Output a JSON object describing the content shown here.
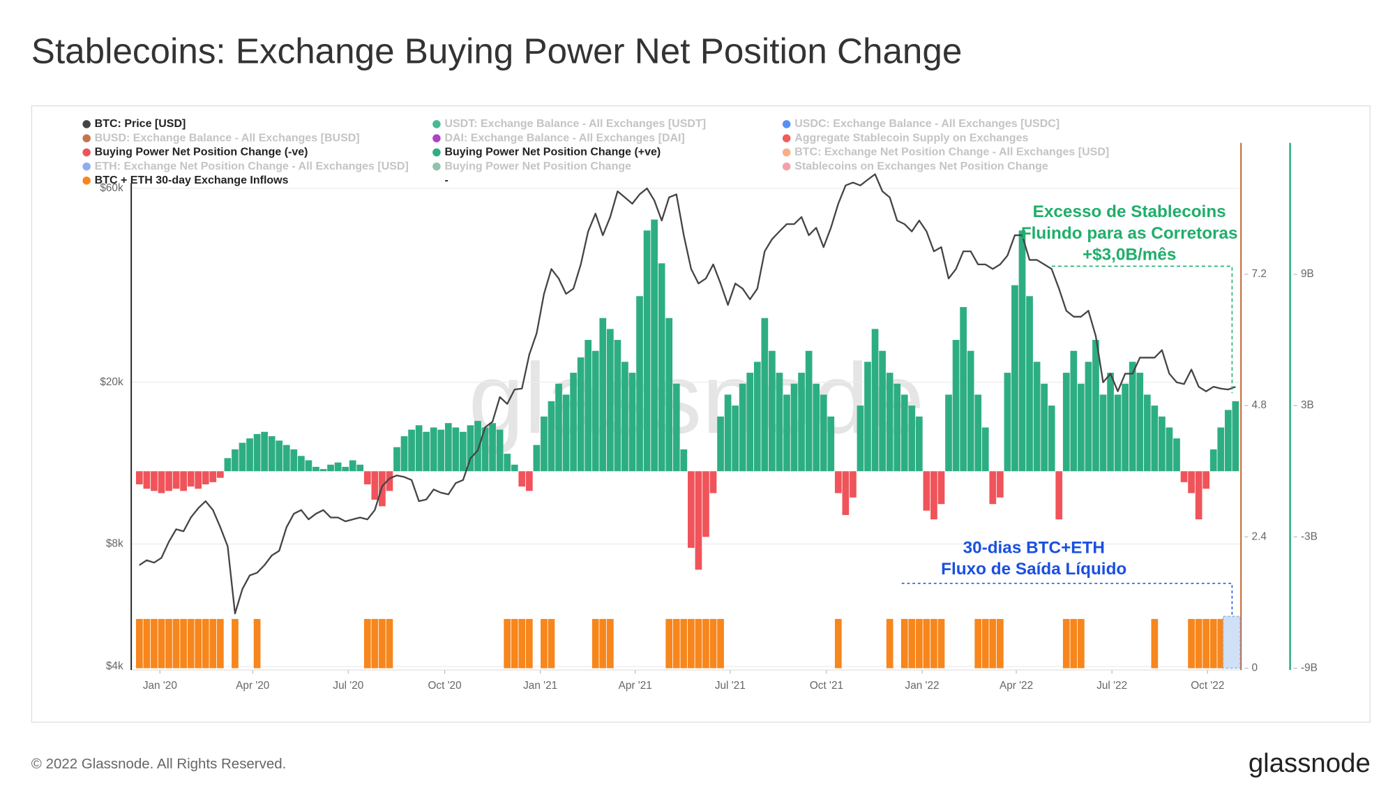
{
  "chart_data": {
    "type": "combo",
    "title": "Stablecoins: Exchange Buying Power Net Position Change",
    "footer": "© 2022 Glassnode. All Rights Reserved.",
    "brand": "glassnode",
    "annotations": {
      "stablecoins": [
        "Excesso de Stablecoins",
        "Fluindo para as Corretoras",
        "+$3,0B/mês"
      ],
      "outflow": [
        "30-dias BTC+ETH",
        "Fluxo de Saída Líquido"
      ]
    },
    "xlim": [
      -0.5,
      149.5
    ],
    "xticks": [
      {
        "value": 2.8,
        "label": "Jan '20"
      },
      {
        "value": 15.4,
        "label": "Apr '20"
      },
      {
        "value": 28.4,
        "label": "Jul '20"
      },
      {
        "value": 41.5,
        "label": "Oct '20"
      },
      {
        "value": 54.5,
        "label": "Jan '21"
      },
      {
        "value": 67.4,
        "label": "Apr '21"
      },
      {
        "value": 80.3,
        "label": "Jul '21"
      },
      {
        "value": 93.4,
        "label": "Oct '21"
      },
      {
        "value": 106.4,
        "label": "Jan '22"
      },
      {
        "value": 119.2,
        "label": "Apr '22"
      },
      {
        "value": 132.2,
        "label": "Jul '22"
      },
      {
        "value": 145.2,
        "label": "Oct '22"
      }
    ],
    "ylog": true,
    "ylim": [
      3960,
      77600
    ],
    "yticks": [
      {
        "value": 4000,
        "label": "$4k"
      },
      {
        "value": 8000,
        "label": "$8k"
      },
      {
        "value": 20000,
        "label": "$20k"
      },
      {
        "value": 60000,
        "label": "$60k"
      }
    ],
    "y2lim": [
      -9,
      15
    ],
    "y2ticks": [
      {
        "value": -9,
        "label": "-9B"
      },
      {
        "value": -3,
        "label": "-3B"
      },
      {
        "value": 3,
        "label": "3B"
      },
      {
        "value": 9,
        "label": "9B"
      }
    ],
    "y3lim": [
      0,
      9.6
    ],
    "y3ticks": [
      0,
      2.4,
      4.8,
      7.2
    ],
    "grid": true,
    "x": [
      0,
      1,
      2,
      3,
      4,
      5,
      6,
      7,
      8,
      9,
      10,
      11,
      12,
      13,
      14,
      15,
      16,
      17,
      18,
      19,
      20,
      21,
      22,
      23,
      24,
      25,
      26,
      27,
      28,
      29,
      30,
      31,
      32,
      33,
      34,
      35,
      36,
      37,
      38,
      39,
      40,
      41,
      42,
      43,
      44,
      45,
      46,
      47,
      48,
      49,
      50,
      51,
      52,
      53,
      54,
      55,
      56,
      57,
      58,
      59,
      60,
      61,
      62,
      63,
      64,
      65,
      66,
      67,
      68,
      69,
      70,
      71,
      72,
      73,
      74,
      75,
      76,
      77,
      78,
      79,
      80,
      81,
      82,
      83,
      84,
      85,
      86,
      87,
      88,
      89,
      90,
      91,
      92,
      93,
      94,
      95,
      96,
      97,
      98,
      99,
      100,
      101,
      102,
      103,
      104,
      105,
      106,
      107,
      108,
      109,
      110,
      111,
      112,
      113,
      114,
      115,
      116,
      117,
      118,
      119,
      120,
      121,
      122,
      123,
      124,
      125,
      126,
      127,
      128,
      129,
      130,
      131,
      132,
      133,
      134,
      135,
      136,
      137,
      138,
      139,
      140,
      141,
      142,
      143,
      144,
      145,
      146,
      147,
      148,
      149
    ],
    "series": [
      {
        "name": "BTC: Price [USD]",
        "color": "#444444",
        "type": "line",
        "axis": "y",
        "values": [
          7100,
          7300,
          7200,
          7400,
          8100,
          8700,
          8600,
          9300,
          9800,
          10200,
          9700,
          8800,
          7900,
          5400,
          6200,
          6700,
          6800,
          7100,
          7500,
          7700,
          8800,
          9500,
          9700,
          9200,
          9500,
          9700,
          9300,
          9300,
          9100,
          9200,
          9300,
          9200,
          9700,
          11100,
          11600,
          11800,
          11700,
          11500,
          10200,
          10300,
          10900,
          10700,
          10600,
          11300,
          11500,
          13000,
          13600,
          15500,
          16000,
          18400,
          17700,
          19200,
          19300,
          23400,
          26400,
          33000,
          38000,
          36000,
          33000,
          34000,
          39000,
          47000,
          52000,
          46000,
          51000,
          59000,
          57000,
          55000,
          58000,
          60000,
          56000,
          50000,
          57000,
          58000,
          46000,
          38000,
          35000,
          36000,
          39000,
          35000,
          31000,
          35000,
          34000,
          32000,
          34000,
          42000,
          45000,
          47000,
          49000,
          49000,
          51000,
          46000,
          48000,
          43000,
          48000,
          55000,
          61000,
          62000,
          61000,
          63000,
          65000,
          59000,
          57000,
          50000,
          49000,
          47000,
          50000,
          47000,
          42000,
          43000,
          36000,
          38000,
          42000,
          42000,
          39000,
          39000,
          38000,
          39000,
          41000,
          46000,
          46000,
          40000,
          40000,
          39000,
          38000,
          34000,
          30000,
          29000,
          29000,
          30000,
          26000,
          20000,
          21000,
          19000,
          21000,
          21000,
          23000,
          23000,
          23000,
          24000,
          21000,
          20000,
          19800,
          21500,
          19500,
          19000,
          19500,
          19300,
          19200,
          19500
        ]
      },
      {
        "name": "BUSD: Exchange Balance - All Exchanges [BUSD]",
        "color": "#b85c2b",
        "hidden": true
      },
      {
        "name": "Buying Power Net Position Change (-ve)",
        "color": "#f0535a",
        "type": "bar",
        "axis": "y2",
        "values": [
          -0.6,
          -0.8,
          -0.9,
          -1.0,
          -0.9,
          -0.8,
          -0.9,
          -0.7,
          -0.8,
          -0.6,
          -0.5,
          -0.3,
          null,
          null,
          null,
          null,
          null,
          null,
          null,
          null,
          null,
          null,
          null,
          null,
          null,
          null,
          null,
          null,
          null,
          null,
          null,
          -0.6,
          -1.3,
          -1.6,
          -0.9,
          null,
          null,
          null,
          null,
          null,
          null,
          null,
          null,
          null,
          null,
          null,
          null,
          null,
          null,
          null,
          null,
          null,
          -0.7,
          -0.9,
          null,
          null,
          null,
          null,
          null,
          null,
          null,
          null,
          null,
          null,
          null,
          null,
          null,
          null,
          null,
          null,
          null,
          null,
          null,
          null,
          null,
          -3.5,
          -4.5,
          -3.0,
          -1.0,
          null,
          null,
          null,
          null,
          null,
          null,
          null,
          null,
          null,
          null,
          null,
          null,
          null,
          null,
          null,
          null,
          -1.0,
          -2.0,
          -1.2,
          null,
          null,
          null,
          null,
          null,
          null,
          null,
          null,
          null,
          -1.8,
          -2.2,
          -1.5,
          null,
          null,
          null,
          null,
          null,
          null,
          -1.5,
          -1.2,
          null,
          null,
          null,
          null,
          null,
          null,
          null,
          -2.2,
          null,
          null,
          null,
          null,
          null,
          null,
          null,
          null,
          null,
          null,
          null,
          null,
          null,
          null,
          null,
          null,
          -0.5,
          -1.0,
          -2.2,
          -0.8,
          null,
          null,
          null,
          null
        ]
      },
      {
        "name": "ETH: Exchange Net Position Change - All Exchanges [USD]",
        "color": "#7b9cf0",
        "hidden": true
      },
      {
        "name": "BTC + ETH 30-day Exchange Inflows",
        "color": "#f7861c",
        "type": "bar",
        "axis": "y3",
        "values": [
          0.9,
          0.9,
          0.9,
          0.9,
          0.9,
          0.9,
          0.9,
          0.9,
          0.9,
          0.9,
          0.9,
          0.9,
          0,
          0.9,
          0,
          0,
          0.9,
          0,
          0,
          0,
          0,
          0,
          0,
          0,
          0,
          0,
          0,
          0,
          0,
          0,
          0,
          0.9,
          0.9,
          0.9,
          0.9,
          0,
          0,
          0,
          0,
          0,
          0,
          0,
          0,
          0,
          0,
          0,
          0,
          0,
          0,
          0,
          0.9,
          0.9,
          0.9,
          0.9,
          0,
          0.9,
          0.9,
          0,
          0,
          0,
          0,
          0,
          0.9,
          0.9,
          0.9,
          0,
          0,
          0,
          0,
          0,
          0,
          0,
          0.9,
          0.9,
          0.9,
          0.9,
          0.9,
          0.9,
          0.9,
          0.9,
          0,
          0,
          0,
          0,
          0,
          0,
          0,
          0,
          0,
          0,
          0,
          0,
          0,
          0,
          0,
          0.9,
          0,
          0,
          0,
          0,
          0,
          0,
          0.9,
          0,
          0.9,
          0.9,
          0.9,
          0.9,
          0.9,
          0.9,
          0,
          0,
          0,
          0,
          0.9,
          0.9,
          0.9,
          0.9,
          0,
          0,
          0,
          0,
          0,
          0,
          0,
          0,
          0.9,
          0.9,
          0.9,
          0,
          0,
          0,
          0,
          0,
          0,
          0,
          0,
          0,
          0.9,
          0,
          0,
          0,
          0,
          0.9,
          0.9,
          0.9,
          0.9,
          0.9,
          0.9,
          0.9
        ]
      },
      {
        "name": "USDT: Exchange Balance - All Exchanges [USDT]",
        "color": "#26ae81",
        "hidden": true
      },
      {
        "name": "DAI: Exchange Balance - All Exchanges [DAI]",
        "color": "#a020c0",
        "hidden": true
      },
      {
        "name": "Buying Power Net Position Change (+ve)",
        "color": "#2dae82",
        "type": "bar",
        "axis": "y2",
        "values": [
          null,
          null,
          null,
          null,
          null,
          null,
          null,
          null,
          null,
          null,
          null,
          null,
          0.6,
          1.0,
          1.3,
          1.5,
          1.7,
          1.8,
          1.6,
          1.4,
          1.2,
          1.0,
          0.7,
          0.5,
          0.2,
          0.1,
          0.3,
          0.4,
          0.2,
          0.5,
          0.3,
          null,
          null,
          null,
          null,
          1.1,
          1.6,
          1.9,
          2.1,
          1.8,
          2.0,
          1.9,
          2.2,
          2.0,
          1.8,
          2.1,
          2.3,
          2.0,
          2.2,
          1.9,
          0.8,
          0.3,
          null,
          null,
          1.2,
          2.5,
          3.2,
          4.0,
          3.5,
          4.5,
          5.2,
          6.0,
          5.5,
          7.0,
          6.5,
          6.0,
          5.0,
          4.5,
          8.0,
          11.0,
          11.5,
          9.5,
          7.0,
          4.0,
          1.0,
          null,
          null,
          null,
          null,
          2.5,
          3.5,
          3.0,
          4.0,
          4.5,
          5.0,
          7.0,
          5.5,
          4.5,
          3.5,
          4.0,
          4.5,
          5.5,
          4.0,
          3.5,
          2.5,
          null,
          null,
          null,
          3.0,
          5.0,
          6.5,
          5.5,
          4.5,
          4.0,
          3.5,
          3.0,
          2.5,
          null,
          null,
          null,
          3.5,
          6.0,
          7.5,
          5.5,
          3.5,
          2.0,
          null,
          null,
          4.5,
          8.5,
          11.0,
          8.0,
          5.0,
          4.0,
          3.0,
          null,
          4.5,
          5.5,
          4.0,
          5.0,
          6.0,
          3.5,
          4.5,
          3.5,
          4.0,
          5.0,
          4.5,
          3.5,
          3.0,
          2.5,
          2.0,
          1.5,
          null,
          null,
          null,
          null,
          1.0,
          2.0,
          2.8,
          3.2
        ]
      },
      {
        "name": "Buying Power Net Position Change",
        "color": "#7ab89e",
        "hidden": true
      },
      {
        "name": "-"
      },
      {
        "name": "USDC: Exchange Balance - All Exchanges [USDC]",
        "color": "#3a7cf0",
        "hidden": true
      },
      {
        "name": "Aggregate Stablecoin Supply on Exchanges",
        "color": "#f04040",
        "hidden": true
      },
      {
        "name": "BTC: Exchange Net Position Change - All Exchanges [USD]",
        "color": "#f8a070",
        "hidden": true
      },
      {
        "name": "Stablecoins on Exchanges Net Position Change",
        "color": "#f09098",
        "hidden": true
      }
    ]
  }
}
